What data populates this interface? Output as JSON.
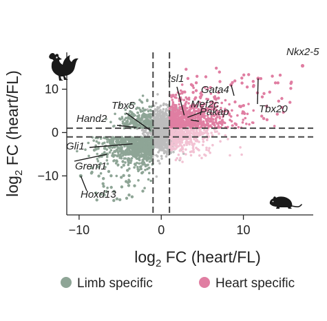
{
  "chart_data": {
    "type": "scatter",
    "xlabel": {
      "base": "log",
      "sub": "2",
      "rest": " FC (heart/FL)"
    },
    "ylabel": {
      "base": "log",
      "sub": "2",
      "rest": " FC (heart/FL)"
    },
    "xlim": [
      -11.5,
      18.5
    ],
    "ylim": [
      -19,
      18.5
    ],
    "x_ticks": [
      -10,
      0,
      10
    ],
    "y_ticks": [
      -10,
      0,
      10
    ],
    "x_tick_labels": [
      "−10",
      "0",
      "10"
    ],
    "y_tick_labels": [
      "−10",
      "0",
      "10"
    ],
    "threshold_lines": {
      "x": [
        -1,
        1
      ],
      "y": [
        -1,
        1
      ]
    },
    "grid": false,
    "legend_position": "bottom",
    "legend": [
      {
        "label": "Limb specific",
        "color": "#8ea596"
      },
      {
        "label": "Heart specific",
        "color": "#e07ea2"
      }
    ],
    "colors": {
      "limb": "#8ea596",
      "heart": "#e07ea2",
      "heart_light": "#f2c2d3",
      "nonsig": "#bdbdbd",
      "threshold_line": "#444444"
    },
    "icons": {
      "top_left": "rooster-icon",
      "bottom_right": "mouse-icon"
    },
    "highlighted_genes": [
      {
        "label": "Nkx2-5",
        "x": 17.2,
        "y": 15.4
      },
      {
        "label": "Gata4",
        "x": 8.5,
        "y": 11.0
      },
      {
        "label": "Tbx20",
        "x": 11.8,
        "y": 12.5
      },
      {
        "label": "Isl1",
        "x": 2.8,
        "y": 4.0
      },
      {
        "label": "Mef2c",
        "x": 3.2,
        "y": 3.5
      },
      {
        "label": "Pakap",
        "x": 3.6,
        "y": 2.9
      },
      {
        "label": "Tbx5",
        "x": -1.3,
        "y": 0.5
      },
      {
        "label": "Hand2",
        "x": -3.0,
        "y": 1.2
      },
      {
        "label": "Gli1",
        "x": -3.5,
        "y": -2.6
      },
      {
        "label": "Grem1",
        "x": -6.6,
        "y": -5.0
      },
      {
        "label": "Hoxd13",
        "x": -9.8,
        "y": -10.0
      }
    ]
  }
}
